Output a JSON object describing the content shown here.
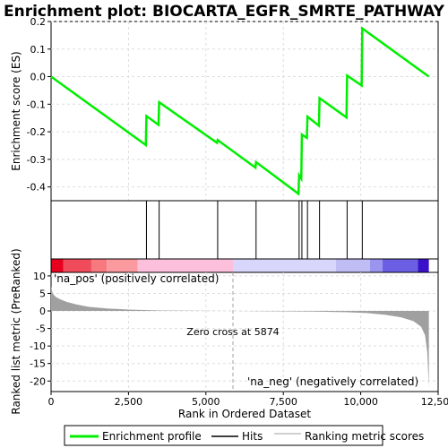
{
  "chart_data": {
    "type": "line",
    "title": "Enrichment plot: BIOCARTA_EGFR_SMRTE_PATHWAY",
    "xlabel": "Rank in Ordered Dataset",
    "ylabel_top": "Enrichment score (ES)",
    "ylabel_bottom": "Ranked list metric (PreRanked)",
    "xlim": [
      0,
      12500
    ],
    "es_ylim": [
      -0.45,
      0.2
    ],
    "metric_ylim": [
      -23,
      11
    ],
    "x_ticks": [
      0,
      2500,
      5000,
      7500,
      10000,
      12500
    ],
    "x_tick_labels": [
      "0",
      "2,500",
      "5,000",
      "7,500",
      "10,000",
      "12,500"
    ],
    "es_ticks": [
      -0.4,
      -0.3,
      -0.2,
      -0.1,
      0.0,
      0.1,
      0.2
    ],
    "es_tick_labels": [
      "-0.4",
      "-0.3",
      "-0.2",
      "-0.1",
      "0.0",
      "0.1",
      "0.2"
    ],
    "metric_ticks": [
      -20,
      -15,
      -10,
      -5,
      0,
      5,
      10
    ],
    "metric_tick_labels": [
      "-20",
      "-15",
      "-10",
      "-5",
      "0",
      "5",
      "10"
    ],
    "total_genes": 12200,
    "hits": [
      3080,
      3490,
      5380,
      6620,
      8010,
      8100,
      8280,
      8670,
      9560,
      10050
    ],
    "es_profile": {
      "x": [
        0,
        3060,
        3080,
        3470,
        3490,
        5360,
        5380,
        6600,
        6620,
        7990,
        8010,
        8080,
        8100,
        8260,
        8280,
        8650,
        8670,
        9540,
        9560,
        10030,
        10050,
        12200
      ],
      "y": [
        0.0,
        -0.248,
        -0.143,
        -0.175,
        -0.093,
        -0.24,
        -0.23,
        -0.33,
        -0.31,
        -0.425,
        -0.358,
        -0.37,
        -0.21,
        -0.222,
        -0.145,
        -0.178,
        -0.078,
        -0.148,
        0.004,
        -0.032,
        0.175,
        0.0
      ]
    },
    "metric_curve": {
      "x": [
        0,
        50,
        150,
        300,
        500,
        800,
        1200,
        1800,
        2500,
        3500,
        5000,
        5874,
        7000,
        8500,
        9500,
        10200,
        10800,
        11300,
        11700,
        11950,
        12080,
        12150,
        12200
      ],
      "y": [
        7.0,
        5.0,
        4.0,
        3.3,
        2.6,
        1.9,
        1.2,
        0.7,
        0.4,
        0.15,
        0.05,
        0.0,
        -0.08,
        -0.2,
        -0.35,
        -0.6,
        -1.1,
        -1.8,
        -2.9,
        -4.5,
        -7.0,
        -12.0,
        -22.0
      ]
    },
    "zero_cross": 5874,
    "zero_cross_label": "Zero cross at 5874",
    "pos_label": "'na_pos' (positively correlated)",
    "neg_label": "'na_neg' (negatively correlated)",
    "legend": [
      "Enrichment profile",
      "Hits",
      "Ranking metric scores"
    ],
    "heat_bar": [
      {
        "from": 0,
        "to": 400,
        "color": "#e8001f"
      },
      {
        "from": 400,
        "to": 1300,
        "color": "#f04b5a"
      },
      {
        "from": 1300,
        "to": 1800,
        "color": "#f7787f"
      },
      {
        "from": 1800,
        "to": 2800,
        "color": "#fa9a9e"
      },
      {
        "from": 2800,
        "to": 5874,
        "color": "#fdc0dc"
      },
      {
        "from": 5874,
        "to": 9200,
        "color": "#d8d6fb"
      },
      {
        "from": 9200,
        "to": 10300,
        "color": "#c0bdf5"
      },
      {
        "from": 10300,
        "to": 10700,
        "color": "#9b95ef"
      },
      {
        "from": 10700,
        "to": 11850,
        "color": "#6b5fe3"
      },
      {
        "from": 11850,
        "to": 12200,
        "color": "#3a10c8"
      }
    ],
    "colors": {
      "es_line": "#00ee00",
      "hits": "#000000",
      "metric_fill": "#a0a0a0",
      "zero_line": "#a0a0a0",
      "pos_label": "#cc0000",
      "neg_label": "#0000cc"
    }
  }
}
